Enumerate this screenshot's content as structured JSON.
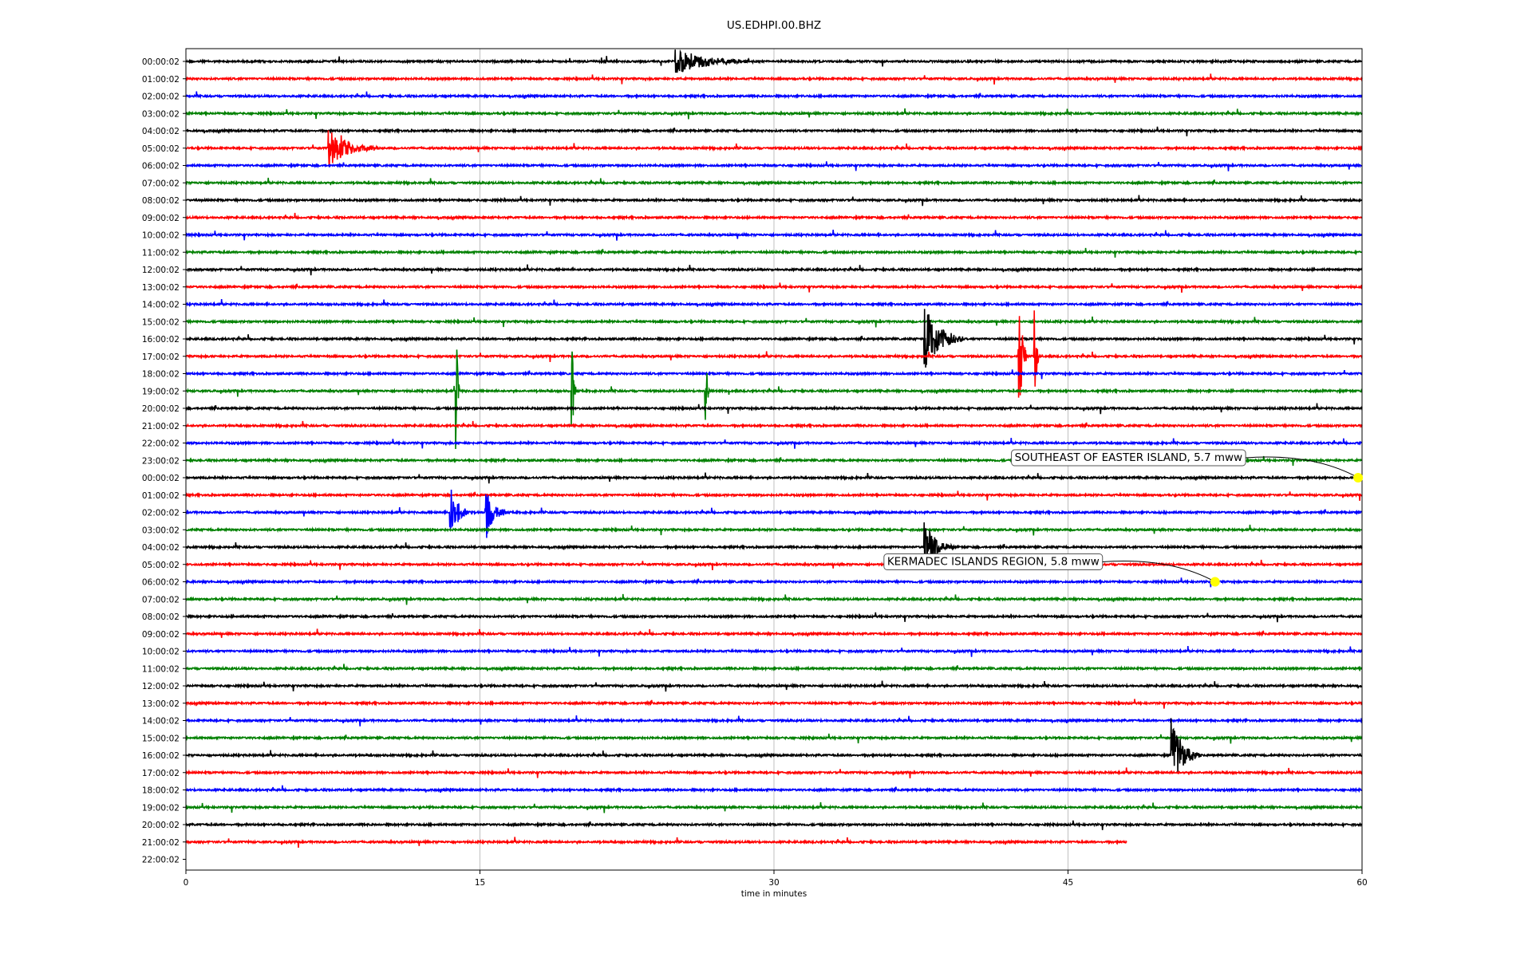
{
  "chart_data": {
    "type": "line",
    "title": "US.EDHPI.00.BHZ",
    "xlabel": "time in minutes",
    "ylabel": "",
    "xlim": [
      0,
      60
    ],
    "x_ticks": [
      "0",
      "15",
      "30",
      "45",
      "60"
    ],
    "grid": "vertical",
    "colors": [
      "#000000",
      "#ff0000",
      "#0000ff",
      "#008000"
    ],
    "row_labels": [
      "00:00:02",
      "01:00:02",
      "02:00:02",
      "03:00:02",
      "04:00:02",
      "05:00:02",
      "06:00:02",
      "07:00:02",
      "08:00:02",
      "09:00:02",
      "10:00:02",
      "11:00:02",
      "12:00:02",
      "13:00:02",
      "14:00:02",
      "15:00:02",
      "16:00:02",
      "17:00:02",
      "18:00:02",
      "19:00:02",
      "20:00:02",
      "21:00:02",
      "22:00:02",
      "23:00:02",
      "00:00:02",
      "01:00:02",
      "02:00:02",
      "03:00:02",
      "04:00:02",
      "05:00:02",
      "06:00:02",
      "07:00:02",
      "08:00:02",
      "09:00:02",
      "10:00:02",
      "11:00:02",
      "12:00:02",
      "13:00:02",
      "14:00:02",
      "15:00:02",
      "16:00:02",
      "17:00:02",
      "18:00:02",
      "19:00:02",
      "20:00:02",
      "21:00:02",
      "22:00:02"
    ],
    "last_trace_end_minute": 48,
    "events": [
      {
        "row": 5,
        "minute": 7.3,
        "amp": 1.2,
        "dur": 2.5
      },
      {
        "row": 0,
        "minute": 25,
        "amp": 0.8,
        "dur": 4
      },
      {
        "row": 16,
        "minute": 37.7,
        "amp": 2.0,
        "dur": 2
      },
      {
        "row": 17,
        "minute": 42.5,
        "amp": 4.0,
        "dur": 0.4
      },
      {
        "row": 17,
        "minute": 43.3,
        "amp": 4.0,
        "dur": 0.2
      },
      {
        "row": 19,
        "minute": 13.8,
        "amp": 3.5,
        "dur": 0.2
      },
      {
        "row": 19,
        "minute": 19.7,
        "amp": 3.0,
        "dur": 0.2
      },
      {
        "row": 19,
        "minute": 26.5,
        "amp": 3.0,
        "dur": 0.2
      },
      {
        "row": 26,
        "minute": 13.5,
        "amp": 1.6,
        "dur": 1
      },
      {
        "row": 26,
        "minute": 15.3,
        "amp": 1.6,
        "dur": 1
      },
      {
        "row": 28,
        "minute": 37.7,
        "amp": 1.5,
        "dur": 1.5
      },
      {
        "row": 40,
        "minute": 50.3,
        "amp": 2.2,
        "dur": 1.5
      }
    ],
    "annotations": [
      {
        "text": "SOUTHEAST OF EASTER ISLAND, 5.7 mww",
        "row": 24,
        "minute": 59.8
      },
      {
        "text": "KERMADEC ISLANDS REGION, 5.8 mww",
        "row": 30,
        "minute": 52.5
      }
    ],
    "marker_color": "#ffff00"
  }
}
